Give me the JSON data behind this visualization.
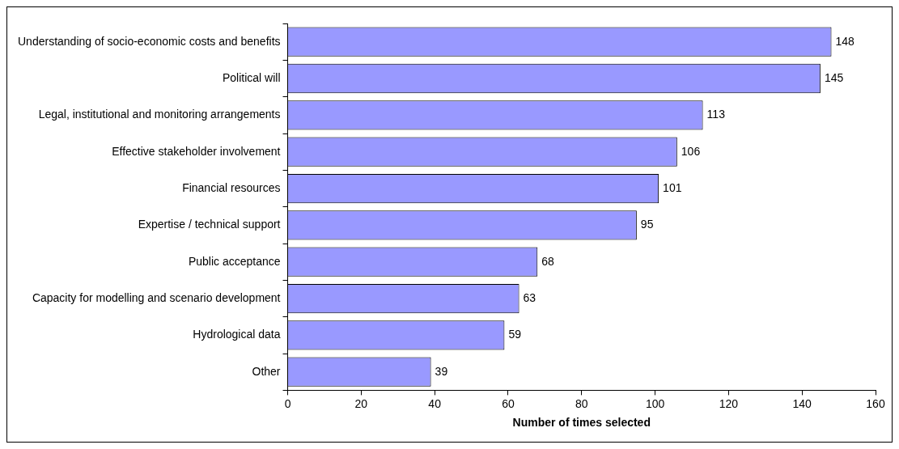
{
  "chart_data": {
    "type": "bar",
    "orientation": "horizontal",
    "xlabel": "Number of times selected",
    "categories": [
      "Understanding of socio-economic costs and benefits",
      "Political will",
      "Legal, institutional and monitoring arrangements",
      "Effective stakeholder involvement",
      "Financial resources",
      "Expertise / technical support",
      "Public acceptance",
      "Capacity for modelling and scenario development",
      "Hydrological data",
      "Other"
    ],
    "values": [
      148,
      145,
      113,
      106,
      101,
      95,
      68,
      63,
      59,
      39
    ],
    "color": "#9999ff",
    "xlim": [
      0,
      160
    ],
    "xticks": [
      0,
      20,
      40,
      60,
      80,
      100,
      120,
      140,
      160
    ],
    "grid": false,
    "legend": false,
    "data_labels": true
  }
}
